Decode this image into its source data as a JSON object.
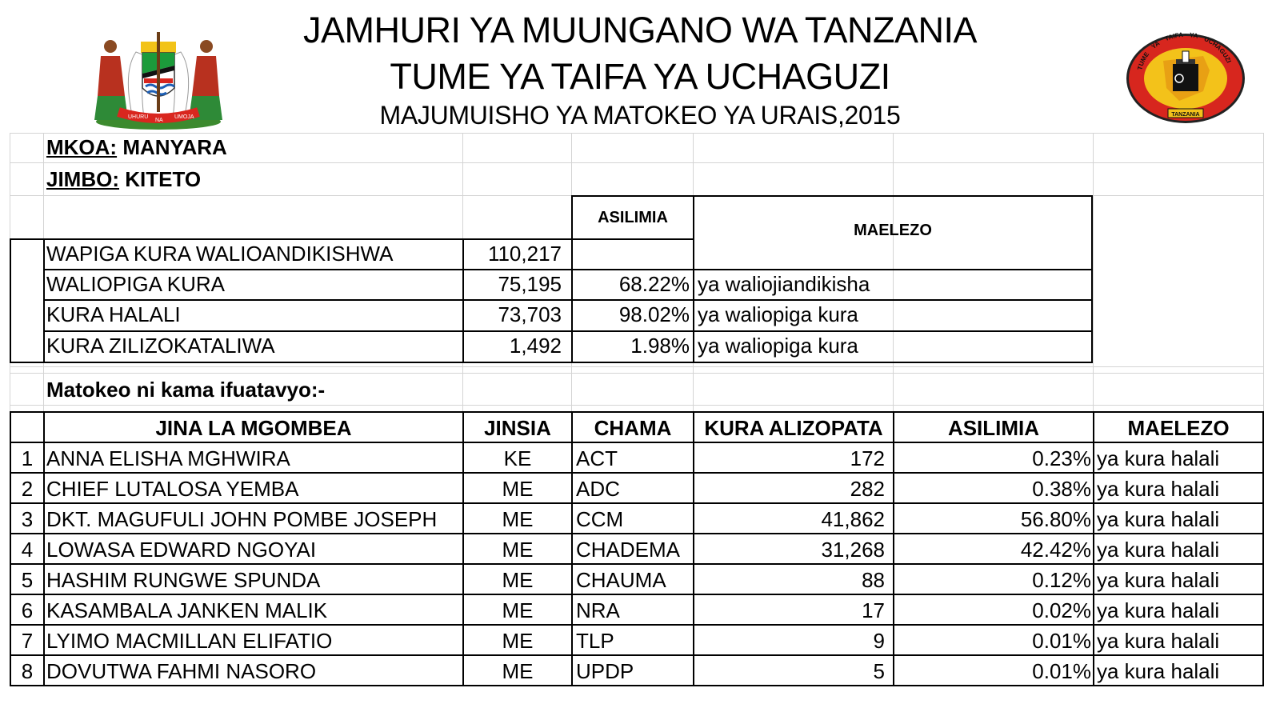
{
  "header": {
    "title_line1": "JAMHURI YA MUUNGANO WA TANZANIA",
    "title_line2": "TUME YA TAIFA YA UCHAGUZI",
    "subtitle": "MAJUMUISHO YA MATOKEO YA URAIS,2015"
  },
  "logos": {
    "left": "coat-of-arms",
    "left_motto": [
      "UHURU",
      "NA",
      "UMOJA"
    ],
    "right": "national-electoral-commission-seal",
    "right_text": [
      "TUME",
      "YA",
      "TAIFA",
      "YA",
      "UCHAGUZI",
      "TANZANIA"
    ]
  },
  "location": {
    "mkoa_label": "MKOA:",
    "mkoa_value": "MANYARA",
    "jimbo_label": "JIMBO:",
    "jimbo_value": "KITETO"
  },
  "summary": {
    "asilimia_header": "ASILIMIA",
    "maelezo_header": "MAELEZO",
    "rows": [
      {
        "label": "WAPIGA KURA WALIOANDIKISHWA",
        "value": "110,217",
        "percent": "",
        "note": ""
      },
      {
        "label": "WALIOPIGA KURA",
        "value": "75,195",
        "percent": "68.22%",
        "note": "ya waliojiandikisha"
      },
      {
        "label": "KURA HALALI",
        "value": "73,703",
        "percent": "98.02%",
        "note": "ya waliopiga kura"
      },
      {
        "label": "KURA ZILIZOKATALIWA",
        "value": "1,492",
        "percent": "1.98%",
        "note": "ya waliopiga kura"
      }
    ]
  },
  "results_intro": "Matokeo ni kama ifuatavyo:-",
  "results": {
    "headers": [
      "JINA LA MGOMBEA",
      "JINSIA",
      "CHAMA",
      "KURA ALIZOPATA",
      "ASILIMIA",
      "MAELEZO"
    ],
    "rows": [
      {
        "no": "1",
        "name": "ANNA ELISHA MGHWIRA",
        "gender": "KE",
        "party": "ACT",
        "votes": "172",
        "percent": "0.23%",
        "note": "ya kura halali"
      },
      {
        "no": "2",
        "name": "CHIEF LUTALOSA YEMBA",
        "gender": "ME",
        "party": "ADC",
        "votes": "282",
        "percent": "0.38%",
        "note": "ya kura halali"
      },
      {
        "no": "3",
        "name": "DKT. MAGUFULI JOHN POMBE JOSEPH",
        "gender": "ME",
        "party": "CCM",
        "votes": "41,862",
        "percent": "56.80%",
        "note": "ya kura halali"
      },
      {
        "no": "4",
        "name": "LOWASA EDWARD NGOYAI",
        "gender": "ME",
        "party": "CHADEMA",
        "votes": "31,268",
        "percent": "42.42%",
        "note": "ya kura halali"
      },
      {
        "no": "5",
        "name": "HASHIM RUNGWE SPUNDA",
        "gender": "ME",
        "party": "CHAUMA",
        "votes": "88",
        "percent": "0.12%",
        "note": "ya kura halali"
      },
      {
        "no": "6",
        "name": "KASAMBALA JANKEN MALIK",
        "gender": "ME",
        "party": "NRA",
        "votes": "17",
        "percent": "0.02%",
        "note": "ya kura halali"
      },
      {
        "no": "7",
        "name": "LYIMO MACMILLAN ELIFATIO",
        "gender": "ME",
        "party": "TLP",
        "votes": "9",
        "percent": "0.01%",
        "note": "ya kura halali"
      },
      {
        "no": "8",
        "name": "DOVUTWA FAHMI NASORO",
        "gender": "ME",
        "party": "UPDP",
        "votes": "5",
        "percent": "0.01%",
        "note": "ya kura halali"
      }
    ]
  },
  "colors": {
    "grid_line": "#d4d4d4",
    "border": "#000000",
    "seal_red": "#d7261e",
    "seal_yellow": "#f3c21a"
  }
}
